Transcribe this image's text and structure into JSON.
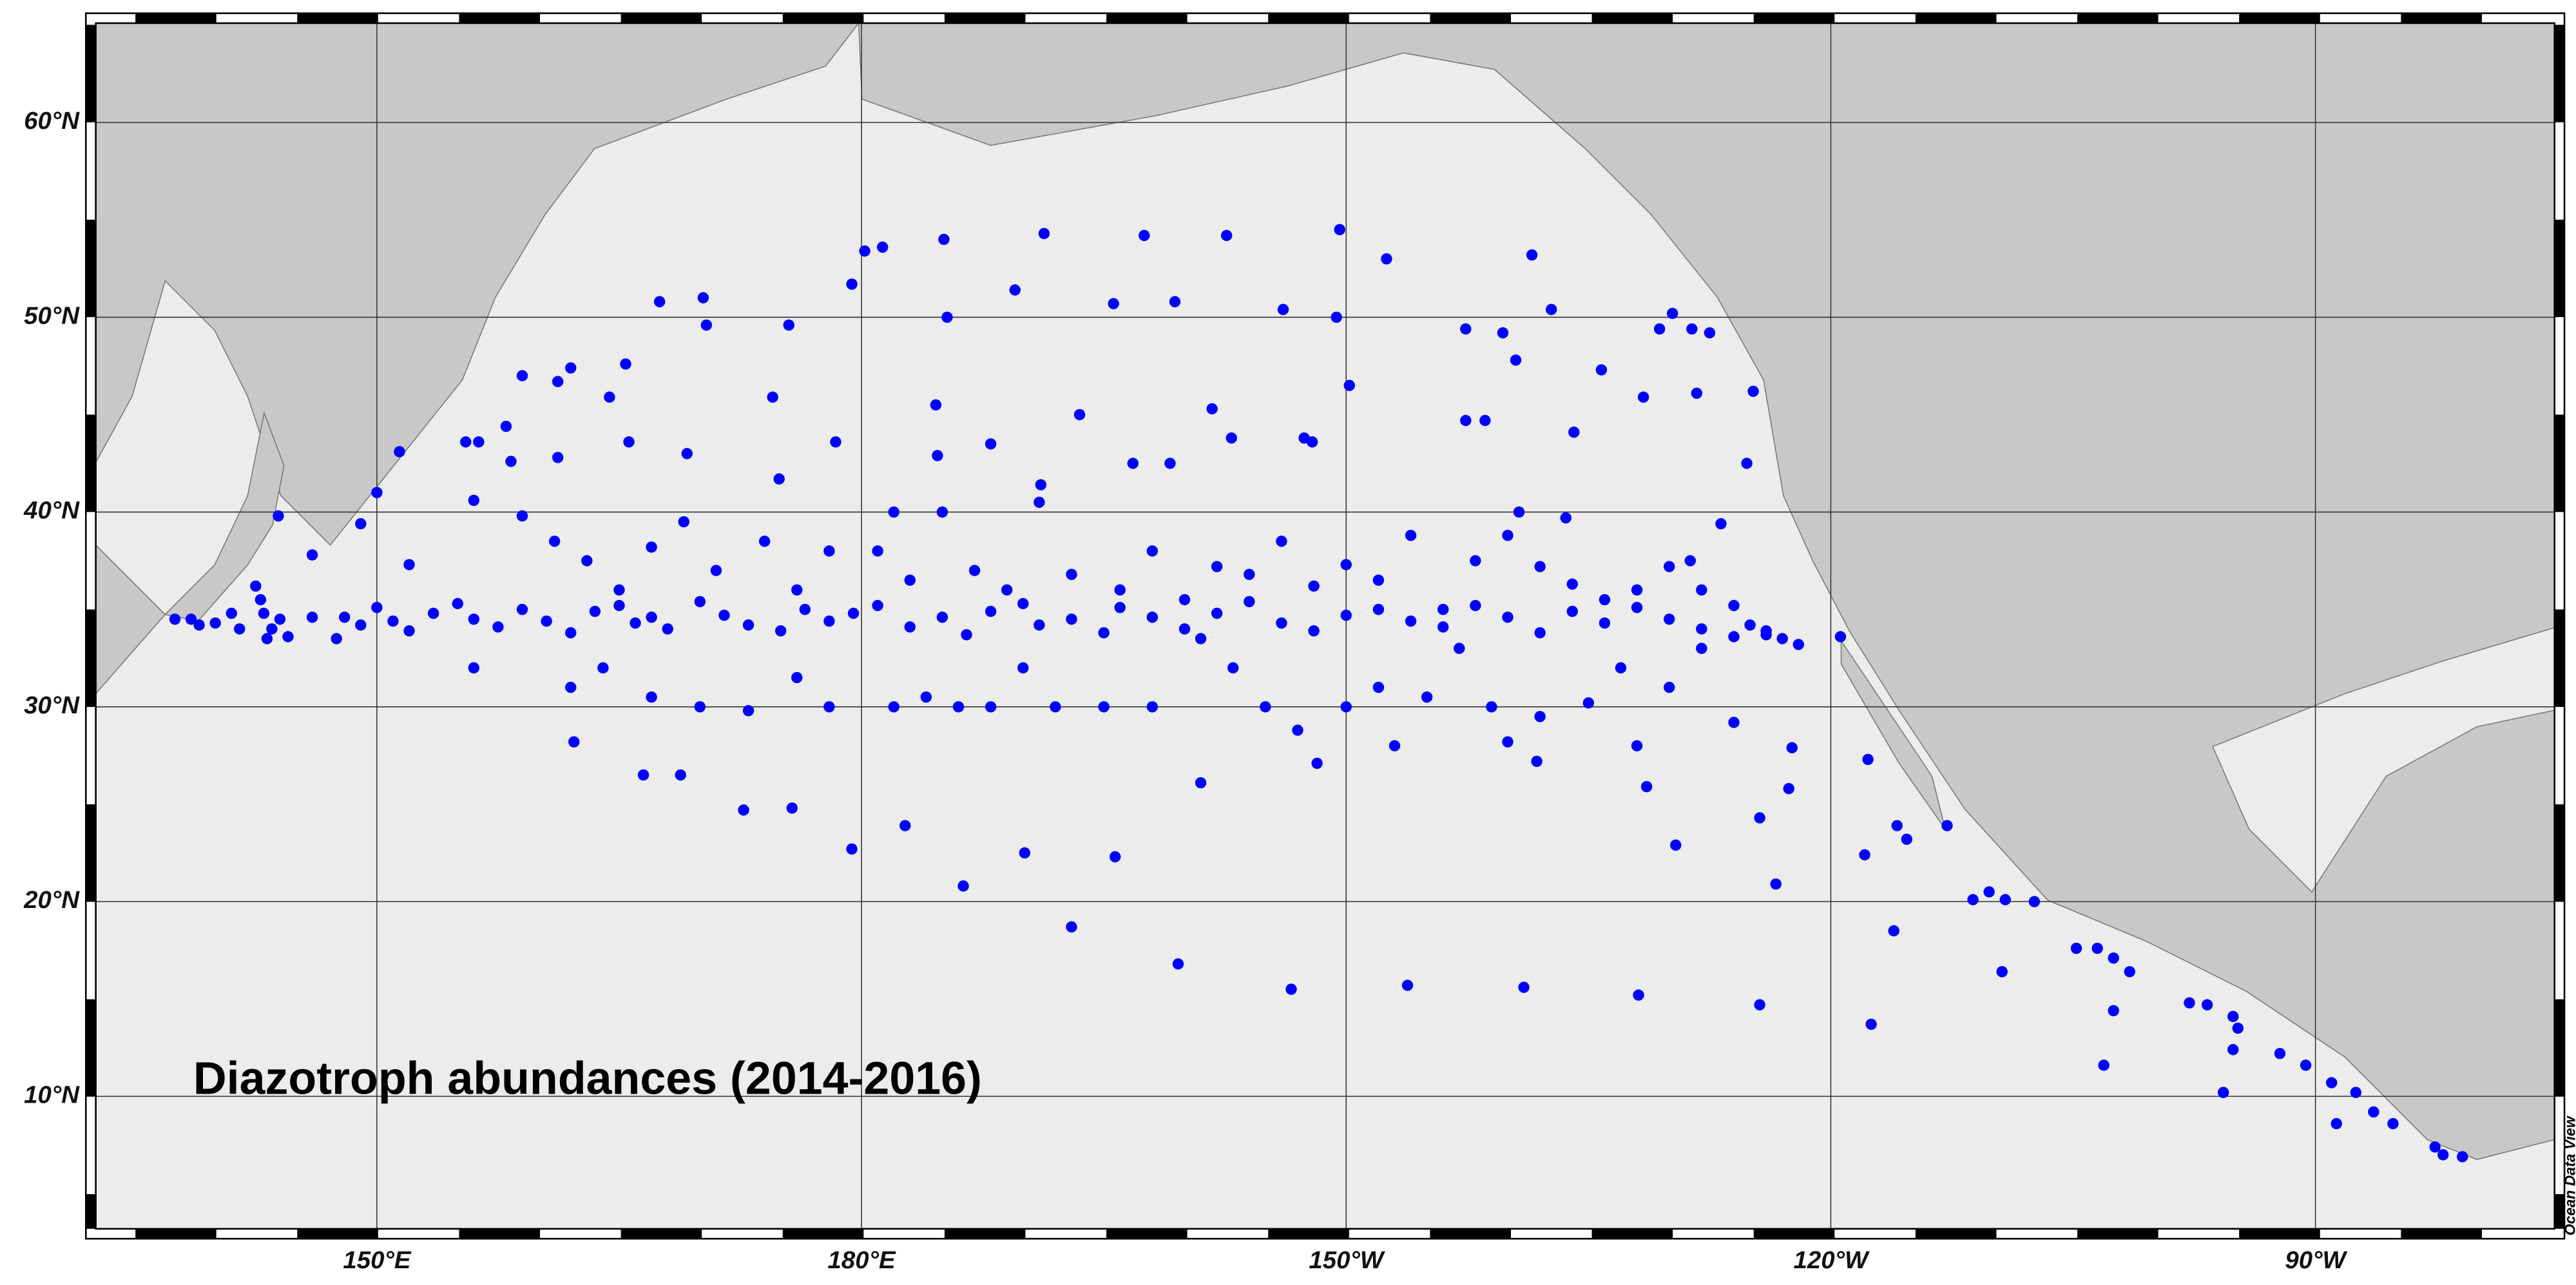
{
  "chart_data": {
    "type": "scatter",
    "title": "Diazotroph abundances (2014-2016)",
    "credit": "Ocean Data View",
    "color": "#0000ff",
    "grid": true,
    "xlim": [
      132.6,
      284.8
    ],
    "ylim": [
      3.2,
      65.1
    ],
    "xticks": [
      {
        "value": 150,
        "label": "150°E"
      },
      {
        "value": 180,
        "label": "180°E"
      },
      {
        "value": 210,
        "label": "150°W"
      },
      {
        "value": 240,
        "label": "120°W"
      },
      {
        "value": 270,
        "label": "90°W"
      }
    ],
    "yticks": [
      {
        "value": 10,
        "label": "10°N"
      },
      {
        "value": 20,
        "label": "20°N"
      },
      {
        "value": 30,
        "label": "30°N"
      },
      {
        "value": 40,
        "label": "40°N"
      },
      {
        "value": 50,
        "label": "50°N"
      },
      {
        "value": 60,
        "label": "60°N"
      }
    ],
    "x": [
      137.5,
      138.5,
      140,
      141,
      142.5,
      142.8,
      143,
      143.5,
      143.2,
      144,
      144.5,
      141.5,
      139,
      146,
      147.5,
      143.9,
      148,
      149,
      150,
      151,
      152,
      153.5,
      155,
      156,
      157.5,
      159,
      160.5,
      162,
      163.5,
      165,
      166,
      167,
      168,
      170,
      171.5,
      173,
      175,
      176.5,
      178,
      179.5,
      181,
      183,
      185,
      186.5,
      188,
      190,
      191,
      193,
      195,
      196,
      198,
      200,
      202,
      204,
      206,
      208,
      210,
      212,
      214,
      216,
      218,
      220,
      222,
      224,
      226,
      228,
      230,
      232,
      234,
      235,
      236,
      237,
      151.4,
      150,
      155.5,
      156.3,
      159,
      158,
      158.3,
      161.2,
      162,
      161.2,
      164.4,
      165.4,
      165.6,
      167.5,
      170.2,
      170.4,
      169.2,
      174.5,
      174.9,
      175.5,
      178.4,
      179.4,
      180.2,
      181.3,
      185.1,
      185.3,
      191.3,
      189.5,
      197.5,
      195.6,
      199.4,
      202.6,
      206.1,
      209.6,
      212.5,
      209.4,
      210.2,
      207.4,
      207.9,
      202.9,
      201.7,
      199.1,
      196.8,
      193.5,
      191.1,
      184.6,
      184.7,
      182,
      188,
      217.4,
      219.7,
      221.5,
      222.7,
      217.4,
      218.6,
      220.5,
      224.1,
      225.8,
      228.4,
      229.4,
      230.2,
      231.4,
      232.5,
      235.2,
      231.7,
      233.2,
      234.8,
      223.6,
      220.7,
      231.3,
      162.2,
      166.5,
      168.8,
      172.7,
      175.7,
      179.4,
      182.7,
      186.3,
      190.1,
      193,
      195.7,
      199.6,
      201,
      206.6,
      208.2,
      213.8,
      221,
      221.8,
      228.1,
      230.4,
      228.6,
      235.6,
      236.6,
      235.6,
      237.4,
      237.6,
      240.6,
      242.3,
      242.1,
      242.5,
      243.9,
      244.1,
      244.7,
      247.2,
      248.8,
      249.8,
      250.8,
      252.6,
      250.6,
      255.2,
      256.5,
      257.5,
      258.5,
      257.5,
      256.9,
      262.2,
      263.3,
      264.9,
      265.2,
      264.9,
      264.3,
      267.8,
      269.4,
      271,
      271.3,
      272.5,
      273.6,
      274.8,
      277.4,
      277.9,
      279.1,
      156,
      162,
      164,
      167,
      170,
      173,
      176,
      178,
      182,
      184,
      186,
      188,
      190,
      192,
      195,
      198,
      201,
      203,
      205,
      207,
      210,
      212,
      213,
      215,
      217,
      219,
      220,
      222,
      225,
      227,
      228,
      230,
      232,
      234,
      146,
      149,
      152,
      156,
      159,
      161,
      163,
      165,
      167,
      169,
      171,
      174,
      176,
      178,
      181,
      183,
      185,
      187,
      189,
      191,
      193,
      196,
      198,
      200,
      202,
      204,
      206,
      208,
      210,
      212,
      214,
      216,
      218,
      220,
      222,
      224,
      226,
      228,
      230,
      232,
      234,
      236,
      238
    ],
    "values": [
      34.5,
      34.5,
      34.3,
      34.8,
      36.2,
      35.5,
      34.8,
      34,
      33.5,
      34.5,
      33.6,
      34,
      34.2,
      34.6,
      33.5,
      39.8,
      34.6,
      34.2,
      35.1,
      34.4,
      33.9,
      34.8,
      35.3,
      34.5,
      34.1,
      35.0,
      34.4,
      33.8,
      34.9,
      35.2,
      34.3,
      34.6,
      34.0,
      35.4,
      34.7,
      34.2,
      33.9,
      35.0,
      34.4,
      34.8,
      35.2,
      34.1,
      34.6,
      33.7,
      34.9,
      35.3,
      34.2,
      34.5,
      33.8,
      35.1,
      34.6,
      34.0,
      34.8,
      35.4,
      34.3,
      33.9,
      34.7,
      35.0,
      34.4,
      34.1,
      35.2,
      34.6,
      33.8,
      34.9,
      34.3,
      35.1,
      34.5,
      34.0,
      33.6,
      34.2,
      33.9,
      33.5,
      43.1,
      41,
      43.6,
      43.6,
      47,
      44.4,
      42.6,
      46.7,
      47.4,
      42.8,
      45.9,
      47.6,
      43.6,
      50.8,
      51,
      49.6,
      43,
      45.9,
      41.7,
      49.6,
      43.6,
      51.7,
      53.4,
      53.6,
      54,
      50,
      54.3,
      51.4,
      54.2,
      50.7,
      50.8,
      54.2,
      50.4,
      54.5,
      53,
      50,
      46.5,
      43.8,
      43.6,
      43.8,
      45.3,
      42.5,
      42.5,
      45,
      41.4,
      45.5,
      42.9,
      40,
      43.5,
      49.4,
      49.2,
      53.2,
      50.4,
      44.7,
      44.7,
      47.8,
      44.1,
      47.3,
      45.9,
      49.4,
      50.2,
      49.4,
      49.2,
      46.2,
      46.1,
      39.4,
      42.5,
      39.7,
      40,
      37.5,
      28.2,
      26.5,
      26.5,
      24.7,
      24.8,
      22.7,
      23.9,
      20.8,
      22.5,
      18.7,
      22.3,
      16.8,
      26.1,
      15.5,
      27.1,
      15.7,
      15.6,
      27.2,
      15.2,
      22.9,
      25.9,
      14.7,
      20.9,
      24.3,
      25.8,
      27.9,
      33.6,
      27.3,
      22.4,
      13.7,
      18.5,
      23.9,
      23.2,
      23.9,
      20.1,
      20.5,
      20.1,
      20,
      16.4,
      17.6,
      17.6,
      17.1,
      16.4,
      14.4,
      11.6,
      14.8,
      14.7,
      14.1,
      13.5,
      12.4,
      10.2,
      12.2,
      11.6,
      10.7,
      8.6,
      10.2,
      9.2,
      8.6,
      7.4,
      7,
      6.9,
      32,
      31,
      32,
      30.5,
      30,
      29.8,
      31.5,
      30,
      30,
      30.5,
      30,
      30,
      32,
      30,
      30,
      30,
      33.5,
      32,
      30,
      28.8,
      30,
      31,
      28,
      30.5,
      33,
      30,
      28.2,
      29.5,
      30.2,
      32,
      28,
      31,
      33,
      29.2,
      37.8,
      39.4,
      37.3,
      40.6,
      39.8,
      38.5,
      37.5,
      36,
      38.2,
      39.5,
      37,
      38.5,
      36,
      38,
      38,
      36.5,
      40,
      37,
      36,
      40.5,
      36.8,
      36,
      38,
      35.5,
      37.2,
      36.8,
      38.5,
      36.2,
      37.3,
      36.5,
      38.8,
      35,
      37.5,
      38.8,
      37.2,
      36.3,
      35.5,
      36,
      37.2,
      36,
      35.2,
      33.7,
      33.2
    ]
  }
}
